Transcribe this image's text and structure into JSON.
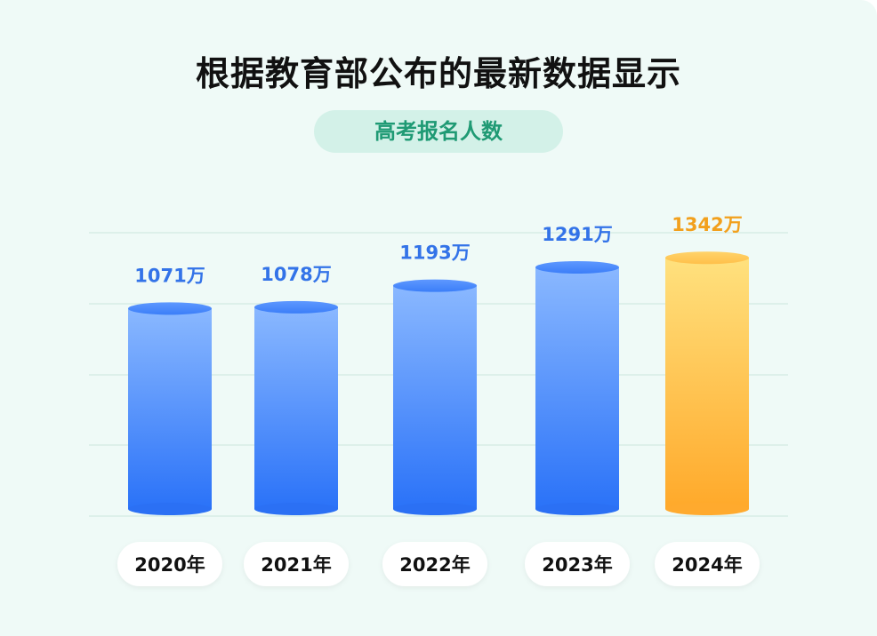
{
  "title": "根据教育部公布的最新数据显示",
  "subtitle": "高考报名人数",
  "colors": {
    "background": "#effaf7",
    "pill_bg": "#d3f1e8",
    "pill_text": "#1f9a74",
    "bar_blue_top": "#8ab8ff",
    "bar_blue_bottom": "#2a72f8",
    "bar_orange_top": "#ffe17e",
    "bar_orange_bottom": "#ffa92a",
    "label_blue": "#3373e8",
    "label_orange": "#f2a01d",
    "grid": "#d7ece6"
  },
  "chart_data": {
    "type": "bar",
    "style": "cylinder",
    "categories": [
      "2020年",
      "2021年",
      "2022年",
      "2023年",
      "2024年"
    ],
    "values": [
      1071,
      1078,
      1193,
      1291,
      1342
    ],
    "value_labels": [
      "1071万",
      "1078万",
      "1193万",
      "1291万",
      "1342万"
    ],
    "unit": "万",
    "highlight_index": 4,
    "ylim": [
      0,
      1500
    ],
    "grid": true,
    "title": "根据教育部公布的最新数据显示",
    "subtitle": "高考报名人数",
    "xlabel": "",
    "ylabel": ""
  }
}
